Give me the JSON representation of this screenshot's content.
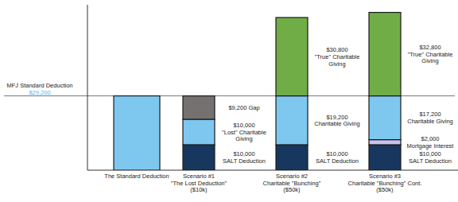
{
  "chart_data": {
    "type": "bar",
    "stacked": true,
    "data_labels": true,
    "tick_labels": false,
    "grid": false,
    "categories": [
      "The Standard Deduction",
      "Scenario #1\n\"The Lost Deduction\"\n($10k)",
      "Scenario #2\nCharitable \"Bunching\"\n($50k)",
      "Scenario #3\nCharitable \"Bunching\" Cont.\n($50k)"
    ],
    "ylim": [
      0,
      65000
    ],
    "yticks": [],
    "annotations": [
      {
        "text": "MFJ Standard Deduction",
        "value": 29200,
        "value_label": "$29,200"
      }
    ],
    "series": [
      {
        "color": "#7ec8f0",
        "values": [
          29200,
          null,
          null,
          null
        ]
      },
      {
        "color": "#17375e",
        "values": [
          null,
          10000,
          10000,
          10000
        ],
        "value_labels": [
          null,
          "$10,000\nSALT Deduction",
          "$10,000\nSALT Deduction",
          "$10,000\nSALT Deduction"
        ]
      },
      {
        "color": "#c9c2ee",
        "values": [
          null,
          null,
          null,
          2000
        ],
        "value_labels": [
          null,
          null,
          null,
          "$2,000\nMortgage Interest"
        ]
      },
      {
        "color": "#7ec8f0",
        "values": [
          null,
          10000,
          19200,
          17200
        ],
        "value_labels": [
          null,
          "$10,000\n\"Lost\" Charitable\nGiving",
          "$19,200\nCharitable Giving",
          "$17,200\nCharitable Giving"
        ]
      },
      {
        "color": "#767171",
        "values": [
          null,
          9200,
          null,
          null
        ],
        "value_labels": [
          null,
          "$9,200 Gap",
          null,
          null
        ]
      },
      {
        "color": "#70ad47",
        "values": [
          null,
          null,
          30800,
          32800
        ],
        "value_labels": [
          null,
          null,
          "$30,800\n\"True\" Charitable\nGiving",
          "$32,800\n\"True\" Charitable\nGiving"
        ]
      }
    ]
  }
}
